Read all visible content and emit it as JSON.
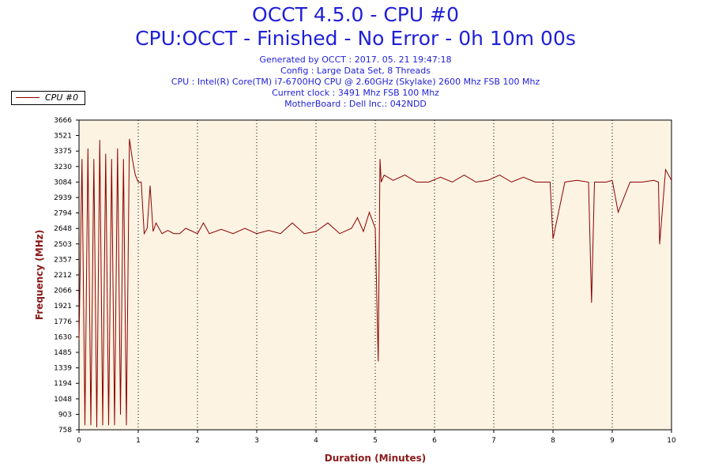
{
  "header": {
    "title": "OCCT 4.5.0 - CPU #0",
    "subtitle": "CPU:OCCT - Finished - No Error - 0h 10m 00s",
    "info_lines": [
      "Generated by OCCT : 2017. 05. 21 19:47:18",
      "Config : Large Data Set, 8 Threads",
      "CPU : Intel(R) Core(TM) i7-6700HQ CPU @ 2.60GHz (Skylake) 2600 Mhz FSB 100 Mhz",
      "Current clock : 3491 Mhz FSB 100 Mhz",
      "MotherBoard : Dell Inc.: 042NDD"
    ]
  },
  "legend": {
    "label": "CPU #0",
    "placement": "top-left"
  },
  "colors": {
    "title": "#1f1fd6",
    "axis_label": "#8b1a1a",
    "series": "#8b0000",
    "plot_background": "#fdf3e3"
  },
  "chart_data": {
    "type": "line",
    "xlabel": "Duration (Minutes)",
    "ylabel": "Frequency (MHz)",
    "xlim": [
      0,
      10
    ],
    "ylim": [
      758,
      3666
    ],
    "x_ticks": [
      "0",
      "1",
      "2",
      "3",
      "4",
      "5",
      "6",
      "7",
      "8",
      "9",
      "10"
    ],
    "y_ticks": [
      "758",
      "903",
      "1048",
      "1194",
      "1339",
      "1485",
      "1630",
      "1776",
      "1921",
      "2066",
      "2212",
      "2357",
      "2503",
      "2648",
      "2794",
      "2939",
      "3084",
      "3230",
      "3375",
      "3521",
      "3666"
    ],
    "grid": {
      "vertical": "dotted",
      "horizontal": false
    },
    "series": [
      {
        "name": "CPU #0",
        "x": [
          0,
          0.05,
          0.1,
          0.15,
          0.2,
          0.25,
          0.3,
          0.35,
          0.4,
          0.45,
          0.5,
          0.55,
          0.6,
          0.65,
          0.7,
          0.75,
          0.8,
          0.85,
          0.9,
          0.95,
          1.0,
          1.05,
          1.1,
          1.15,
          1.2,
          1.25,
          1.3,
          1.4,
          1.5,
          1.6,
          1.7,
          1.8,
          2.0,
          2.1,
          2.2,
          2.4,
          2.6,
          2.8,
          3.0,
          3.2,
          3.4,
          3.6,
          3.8,
          4.0,
          4.2,
          4.4,
          4.6,
          4.7,
          4.8,
          4.9,
          5.0,
          5.05,
          5.08,
          5.1,
          5.15,
          5.3,
          5.5,
          5.7,
          5.9,
          6.1,
          6.3,
          6.5,
          6.7,
          6.9,
          7.1,
          7.3,
          7.5,
          7.7,
          7.95,
          8.0,
          8.2,
          8.4,
          8.6,
          8.65,
          8.7,
          8.9,
          9.0,
          9.1,
          9.3,
          9.5,
          9.7,
          9.78,
          9.8,
          9.9,
          10.0
        ],
        "y": [
          1600,
          3300,
          800,
          3400,
          800,
          3300,
          780,
          3480,
          800,
          3350,
          800,
          3300,
          800,
          3400,
          900,
          3300,
          800,
          3490,
          3300,
          3150,
          3084,
          3084,
          2600,
          2650,
          3050,
          2620,
          2700,
          2600,
          2630,
          2600,
          2600,
          2650,
          2600,
          2700,
          2600,
          2640,
          2600,
          2650,
          2600,
          2630,
          2600,
          2700,
          2600,
          2620,
          2700,
          2600,
          2650,
          2750,
          2620,
          2800,
          2650,
          1400,
          3300,
          3084,
          3150,
          3100,
          3150,
          3084,
          3084,
          3130,
          3084,
          3150,
          3084,
          3100,
          3150,
          3084,
          3130,
          3084,
          3084,
          2550,
          3084,
          3100,
          3084,
          1950,
          3084,
          3084,
          3100,
          2800,
          3084,
          3084,
          3100,
          3084,
          2500,
          3200,
          3100
        ]
      }
    ]
  }
}
